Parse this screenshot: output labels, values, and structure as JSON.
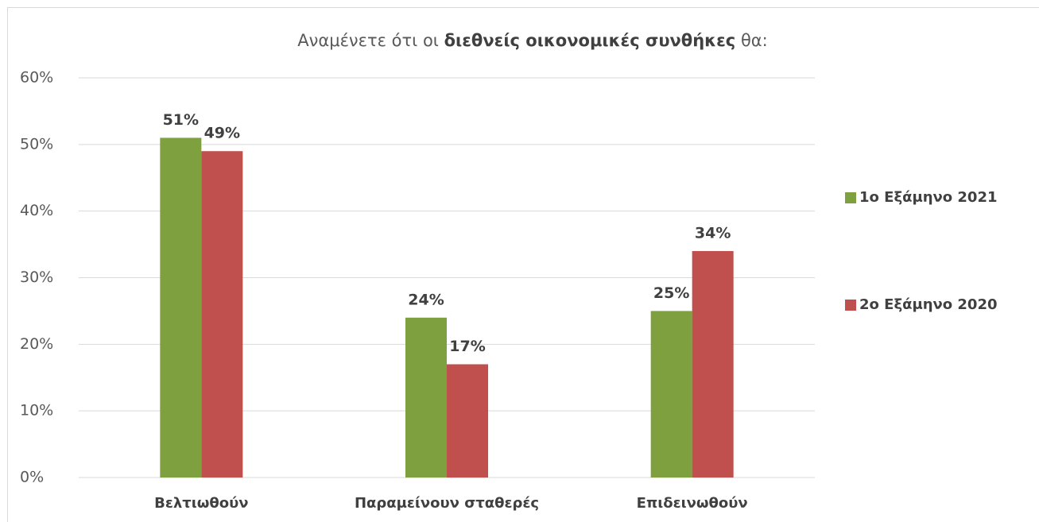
{
  "chart_data": {
    "type": "bar",
    "title": [
      "Αναμένετε ότι οι",
      "διεθνείς οικονομικές συνθήκες",
      "θα:"
    ],
    "categories": [
      "Βελτιωθούν",
      "Παραμείνουν σταθερές",
      "Επιδεινωθούν"
    ],
    "series": [
      {
        "name": "1ο Εξάμηνο 2021",
        "color": "#7ea03f",
        "values": [
          51,
          24,
          25
        ],
        "value_labels": [
          "51%",
          "24%",
          "25%"
        ]
      },
      {
        "name": "2ο Εξάμηνο 2020",
        "color": "#c0504d",
        "values": [
          49,
          17,
          34
        ],
        "value_labels": [
          "49%",
          "17%",
          "34%"
        ]
      }
    ],
    "ylim": [
      0,
      60
    ],
    "yticks": [
      {
        "value": 0,
        "label": "0%"
      },
      {
        "value": 10,
        "label": "10%"
      },
      {
        "value": 20,
        "label": "20%"
      },
      {
        "value": 30,
        "label": "30%"
      },
      {
        "value": 40,
        "label": "40%"
      },
      {
        "value": 50,
        "label": "50%"
      },
      {
        "value": 60,
        "label": "60%"
      }
    ],
    "grid": true,
    "legend": "right"
  }
}
